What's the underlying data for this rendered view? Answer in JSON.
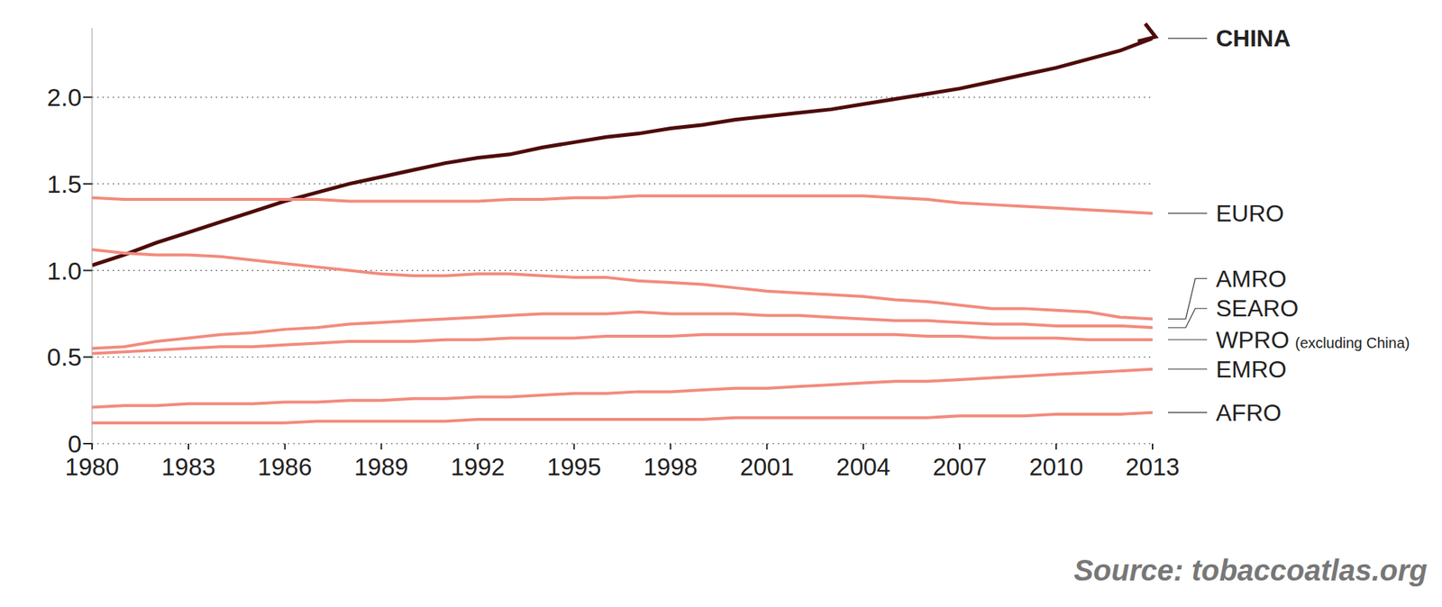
{
  "chart_data": {
    "type": "line",
    "source": "Source: tobaccoatlas.org",
    "x": [
      1980,
      1981,
      1982,
      1983,
      1984,
      1985,
      1986,
      1987,
      1988,
      1989,
      1990,
      1991,
      1992,
      1993,
      1994,
      1995,
      1996,
      1997,
      1998,
      1999,
      2000,
      2001,
      2002,
      2003,
      2004,
      2005,
      2006,
      2007,
      2008,
      2009,
      2010,
      2011,
      2012,
      2013
    ],
    "xlim": [
      1980,
      2013
    ],
    "xticks": [
      1980,
      1983,
      1986,
      1989,
      1992,
      1995,
      1998,
      2001,
      2004,
      2007,
      2010,
      2013
    ],
    "ylim": [
      0,
      2.4
    ],
    "yticks": [
      0,
      0.5,
      {
        "value": 1,
        "label": "1.0"
      },
      1.5,
      {
        "value": 2,
        "label": "2.0"
      }
    ],
    "grid": true,
    "series": [
      {
        "name": "CHINA",
        "color": "#4e0b0b",
        "marker": "arrow",
        "values": [
          1.03,
          1.09,
          1.16,
          1.22,
          1.28,
          1.34,
          1.4,
          1.45,
          1.5,
          1.54,
          1.58,
          1.62,
          1.65,
          1.67,
          1.71,
          1.74,
          1.77,
          1.79,
          1.82,
          1.84,
          1.87,
          1.89,
          1.91,
          1.93,
          1.96,
          1.99,
          2.02,
          2.05,
          2.09,
          2.13,
          2.17,
          2.22,
          2.27,
          2.34
        ]
      },
      {
        "name": "EURO",
        "color": "#f28b7d",
        "values": [
          1.42,
          1.41,
          1.41,
          1.41,
          1.41,
          1.41,
          1.41,
          1.41,
          1.4,
          1.4,
          1.4,
          1.4,
          1.4,
          1.41,
          1.41,
          1.42,
          1.42,
          1.43,
          1.43,
          1.43,
          1.43,
          1.43,
          1.43,
          1.43,
          1.43,
          1.42,
          1.41,
          1.39,
          1.38,
          1.37,
          1.36,
          1.35,
          1.34,
          1.33
        ]
      },
      {
        "name": "AMRO",
        "color": "#f28b7d",
        "values": [
          1.12,
          1.1,
          1.09,
          1.09,
          1.08,
          1.06,
          1.04,
          1.02,
          1.0,
          0.98,
          0.97,
          0.97,
          0.98,
          0.98,
          0.97,
          0.96,
          0.96,
          0.94,
          0.93,
          0.92,
          0.9,
          0.88,
          0.87,
          0.86,
          0.85,
          0.83,
          0.82,
          0.8,
          0.78,
          0.78,
          0.77,
          0.76,
          0.73,
          0.72
        ]
      },
      {
        "name": "SEARO",
        "color": "#f28b7d",
        "values": [
          0.55,
          0.56,
          0.59,
          0.61,
          0.63,
          0.64,
          0.66,
          0.67,
          0.69,
          0.7,
          0.71,
          0.72,
          0.73,
          0.74,
          0.75,
          0.75,
          0.75,
          0.76,
          0.75,
          0.75,
          0.75,
          0.74,
          0.74,
          0.73,
          0.72,
          0.71,
          0.71,
          0.7,
          0.69,
          0.69,
          0.68,
          0.68,
          0.68,
          0.67
        ]
      },
      {
        "name": "WPRO (excluding China)",
        "color": "#f28b7d",
        "values": [
          0.52,
          0.53,
          0.54,
          0.55,
          0.56,
          0.56,
          0.57,
          0.58,
          0.59,
          0.59,
          0.59,
          0.6,
          0.6,
          0.61,
          0.61,
          0.61,
          0.62,
          0.62,
          0.62,
          0.63,
          0.63,
          0.63,
          0.63,
          0.63,
          0.63,
          0.63,
          0.62,
          0.62,
          0.61,
          0.61,
          0.61,
          0.6,
          0.6,
          0.6
        ]
      },
      {
        "name": "EMRO",
        "color": "#f28b7d",
        "values": [
          0.21,
          0.22,
          0.22,
          0.23,
          0.23,
          0.23,
          0.24,
          0.24,
          0.25,
          0.25,
          0.26,
          0.26,
          0.27,
          0.27,
          0.28,
          0.29,
          0.29,
          0.3,
          0.3,
          0.31,
          0.32,
          0.32,
          0.33,
          0.34,
          0.35,
          0.36,
          0.36,
          0.37,
          0.38,
          0.39,
          0.4,
          0.41,
          0.42,
          0.43
        ]
      },
      {
        "name": "AFRO",
        "color": "#f28b7d",
        "values": [
          0.12,
          0.12,
          0.12,
          0.12,
          0.12,
          0.12,
          0.12,
          0.13,
          0.13,
          0.13,
          0.13,
          0.13,
          0.14,
          0.14,
          0.14,
          0.14,
          0.14,
          0.14,
          0.14,
          0.14,
          0.15,
          0.15,
          0.15,
          0.15,
          0.15,
          0.15,
          0.15,
          0.16,
          0.16,
          0.16,
          0.17,
          0.17,
          0.17,
          0.18
        ]
      }
    ]
  }
}
